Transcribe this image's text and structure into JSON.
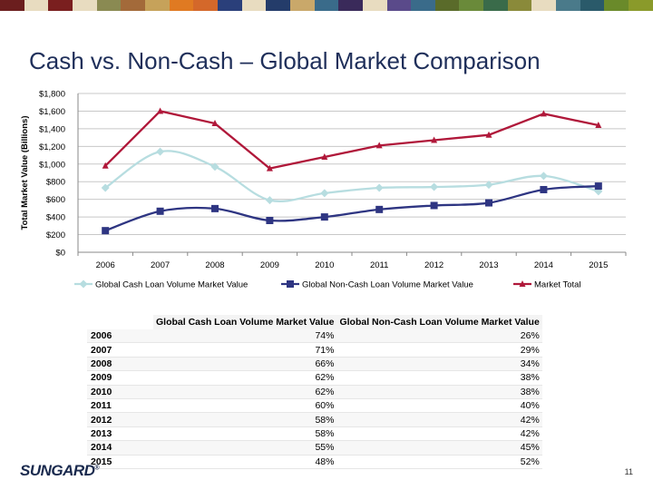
{
  "slide": {
    "title": "Cash vs. Non-Cash – Global Market Comparison",
    "page_number": "11",
    "logo_text": "SUNGARD",
    "logo_mark": "®"
  },
  "colors": {
    "bar_segments": [
      "#6b1e1e",
      "#e8dcc0",
      "#7a1f1f",
      "#e8dcc0",
      "#8a8a52",
      "#a36a3a",
      "#c6a25a",
      "#e07a22",
      "#d4682a",
      "#2a3f7a",
      "#e8dcc0",
      "#243c6a",
      "#c9a86a",
      "#3a6b8a",
      "#3a2a5a",
      "#e8dcc0",
      "#5a4a8a",
      "#3a6b8a",
      "#5a6b2a",
      "#6a8a3a",
      "#3a6b4a",
      "#8a8a3a",
      "#e8dcc0",
      "#4a7a8a",
      "#2a5a6a",
      "#6a8a2a",
      "#8a9a2a"
    ],
    "cash": "#b7dde0",
    "noncash": "#2e3582",
    "total": "#b0183a",
    "title": "#1f2f5a"
  },
  "chart_data": {
    "type": "line",
    "title": "",
    "xlabel": "",
    "ylabel": "Total Market Value (Billions)",
    "ylim": [
      0,
      1800
    ],
    "y_ticks": [
      "$0",
      "$200",
      "$400",
      "$600",
      "$800",
      "$1,000",
      "$1,200",
      "$1,400",
      "$1,600",
      "$1,800"
    ],
    "y_tick_values": [
      0,
      200,
      400,
      600,
      800,
      1000,
      1200,
      1400,
      1600,
      1800
    ],
    "grid": true,
    "legend_position": "bottom",
    "categories": [
      "2006",
      "2007",
      "2008",
      "2009",
      "2010",
      "2011",
      "2012",
      "2013",
      "2014",
      "2015"
    ],
    "series": [
      {
        "name": "Global Cash Loan Volume Market Value",
        "marker": "diamond",
        "values": [
          730,
          1140,
          970,
          590,
          670,
          730,
          740,
          765,
          865,
          690
        ]
      },
      {
        "name": "Global Non-Cash Loan Volume Market Value",
        "marker": "square",
        "values": [
          245,
          465,
          495,
          360,
          400,
          485,
          530,
          560,
          710,
          750
        ]
      },
      {
        "name": "Market Total",
        "marker": "triangle",
        "values": [
          980,
          1600,
          1460,
          950,
          1080,
          1210,
          1270,
          1330,
          1570,
          1440
        ]
      }
    ]
  },
  "table": {
    "headers": [
      "",
      "Global Cash Loan Volume Market Value",
      "Global Non-Cash Loan Volume Market Value"
    ],
    "rows": [
      [
        "2006",
        "74%",
        "26%"
      ],
      [
        "2007",
        "71%",
        "29%"
      ],
      [
        "2008",
        "66%",
        "34%"
      ],
      [
        "2009",
        "62%",
        "38%"
      ],
      [
        "2010",
        "62%",
        "38%"
      ],
      [
        "2011",
        "60%",
        "40%"
      ],
      [
        "2012",
        "58%",
        "42%"
      ],
      [
        "2013",
        "58%",
        "42%"
      ],
      [
        "2014",
        "55%",
        "45%"
      ],
      [
        "2015",
        "48%",
        "52%"
      ]
    ]
  }
}
